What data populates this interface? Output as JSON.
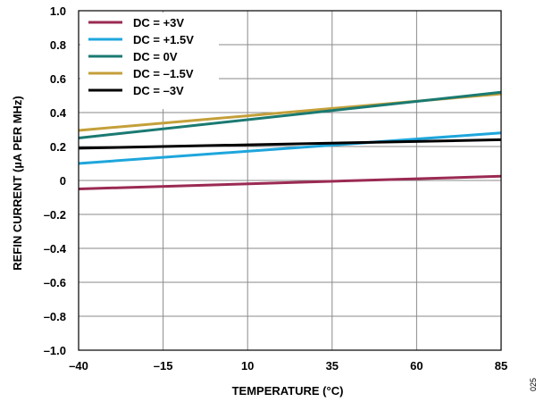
{
  "chart_data": {
    "type": "line",
    "title": "",
    "xlabel": "TEMPERATURE (°C)",
    "ylabel": "REFIN CURRENT (µA PER MHz)",
    "xlim": [
      -40,
      85
    ],
    "ylim": [
      -1.0,
      1.0
    ],
    "x_ticks": [
      -40,
      -15,
      10,
      35,
      60,
      85
    ],
    "x_tick_labels": [
      "–40",
      "–15",
      "10",
      "35",
      "60",
      "85"
    ],
    "y_ticks": [
      1.0,
      0.8,
      0.6,
      0.4,
      0.2,
      0,
      -0.2,
      -0.4,
      -0.6,
      -0.8,
      -1.0
    ],
    "y_tick_labels": [
      "1.0",
      "0.8",
      "0.6",
      "0.4",
      "0.2",
      "0",
      "–0.2",
      "–0.4",
      "–0.6",
      "–0.8",
      "–1.0"
    ],
    "grid": true,
    "legend_position": "top-left",
    "series": [
      {
        "name": "DC = +3V",
        "color": "#9b2a53",
        "x": [
          -40,
          85
        ],
        "y": [
          -0.05,
          0.025
        ]
      },
      {
        "name": "DC = +1.5V",
        "color": "#1ea6dc",
        "x": [
          -40,
          85
        ],
        "y": [
          0.1,
          0.28
        ]
      },
      {
        "name": "DC = 0V",
        "color": "#1a7a72",
        "x": [
          -40,
          85
        ],
        "y": [
          0.25,
          0.52
        ]
      },
      {
        "name": "DC = –1.5V",
        "color": "#c4a03a",
        "x": [
          -40,
          85
        ],
        "y": [
          0.295,
          0.51
        ]
      },
      {
        "name": "DC = –3V",
        "color": "#000000",
        "x": [
          -40,
          85
        ],
        "y": [
          0.19,
          0.24
        ]
      }
    ]
  },
  "figure_id": "025"
}
